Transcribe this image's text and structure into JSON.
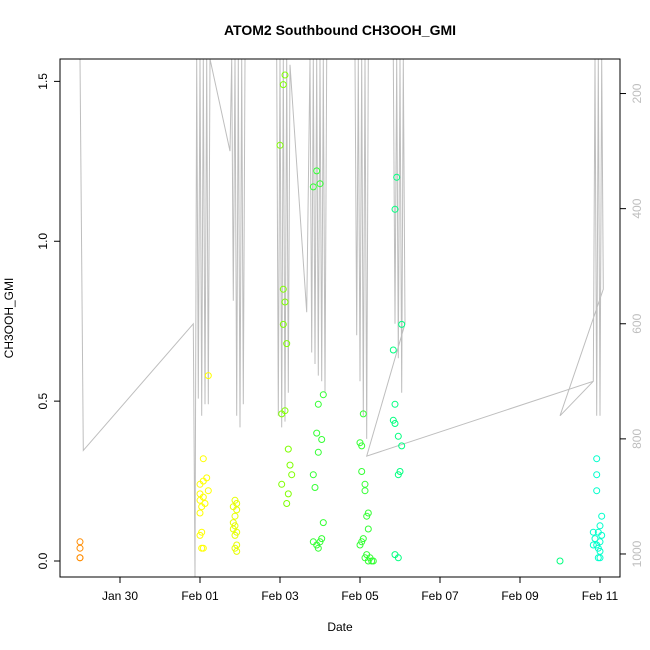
{
  "chart_data": {
    "type": "scatter",
    "title": "ATOM2 Southbound CH3OOH_GMI",
    "xlabel": "Date",
    "ylabel": "CH3OOH_GMI",
    "xlim": [
      "2017-01-28T12:00",
      "2017-02-11T12:00"
    ],
    "ylim": [
      -0.05,
      1.57
    ],
    "x_ticks": [
      {
        "value": "2017-01-30",
        "label": "Jan 30"
      },
      {
        "value": "2017-02-01",
        "label": "Feb 01"
      },
      {
        "value": "2017-02-03",
        "label": "Feb 03"
      },
      {
        "value": "2017-02-05",
        "label": "Feb 05"
      },
      {
        "value": "2017-02-07",
        "label": "Feb 07"
      },
      {
        "value": "2017-02-09",
        "label": "Feb 09"
      },
      {
        "value": "2017-02-11",
        "label": "Feb 11"
      }
    ],
    "y_ticks": [
      0.0,
      0.5,
      1.0,
      1.5
    ],
    "y_tick_labels": [
      "0.0",
      "0.5",
      "1.0",
      "1.5"
    ],
    "y2_label": "",
    "y2lim": [
      1040,
      140
    ],
    "y2_ticks": [
      200,
      400,
      600,
      800,
      1000
    ],
    "y2_tick_labels": [
      "200",
      "400",
      "600",
      "800",
      "1000"
    ],
    "grid": false,
    "colors": {
      "pressure_line": "#bebebe",
      "c1": "#ff8c00",
      "c2": "#ffff00",
      "c3": "#e6ff00",
      "c4": "#7fff00",
      "c5": "#33ff33",
      "c6": "#00ff7f",
      "c7": "#00ffcc"
    },
    "series": [
      {
        "color": "c1",
        "points": [
          [
            "2017-01-29T00:00",
            0.06
          ],
          [
            "2017-01-29T00:00",
            0.04
          ],
          [
            "2017-01-29T00:00",
            0.01
          ],
          [
            "2017-01-29T00:00",
            0.01
          ]
        ]
      },
      {
        "color": "c2",
        "points": [
          [
            "2017-02-01T02:00",
            0.32
          ],
          [
            "2017-02-01T05:00",
            0.58
          ],
          [
            "2017-02-01T04:00",
            0.26
          ],
          [
            "2017-02-01T02:00",
            0.25
          ],
          [
            "2017-02-01T00:00",
            0.24
          ],
          [
            "2017-02-01T05:00",
            0.22
          ],
          [
            "2017-02-01T00:00",
            0.21
          ],
          [
            "2017-02-01T02:00",
            0.2
          ],
          [
            "2017-02-01T00:00",
            0.19
          ],
          [
            "2017-02-01T03:00",
            0.18
          ],
          [
            "2017-02-01T01:00",
            0.17
          ],
          [
            "2017-02-01T00:00",
            0.15
          ],
          [
            "2017-02-01T01:00",
            0.09
          ],
          [
            "2017-02-01T00:00",
            0.08
          ],
          [
            "2017-02-01T02:00",
            0.04
          ],
          [
            "2017-02-01T01:00",
            0.04
          ]
        ]
      },
      {
        "color": "c3",
        "points": [
          [
            "2017-02-01T21:00",
            0.19
          ],
          [
            "2017-02-01T22:00",
            0.18
          ],
          [
            "2017-02-01T20:00",
            0.17
          ],
          [
            "2017-02-01T22:00",
            0.16
          ],
          [
            "2017-02-01T21:00",
            0.14
          ],
          [
            "2017-02-01T20:00",
            0.12
          ],
          [
            "2017-02-01T21:00",
            0.11
          ],
          [
            "2017-02-01T20:00",
            0.1
          ],
          [
            "2017-02-01T22:00",
            0.09
          ],
          [
            "2017-02-01T21:00",
            0.08
          ],
          [
            "2017-02-01T22:00",
            0.05
          ],
          [
            "2017-02-01T21:00",
            0.04
          ],
          [
            "2017-02-01T22:00",
            0.03
          ]
        ]
      },
      {
        "color": "c4",
        "points": [
          [
            "2017-02-03T03:00",
            1.52
          ],
          [
            "2017-02-03T02:00",
            1.49
          ],
          [
            "2017-02-03T00:00",
            1.3
          ],
          [
            "2017-02-03T02:00",
            0.85
          ],
          [
            "2017-02-03T03:00",
            0.81
          ],
          [
            "2017-02-03T02:00",
            0.74
          ],
          [
            "2017-02-03T04:00",
            0.68
          ],
          [
            "2017-02-03T03:00",
            0.47
          ],
          [
            "2017-02-03T01:00",
            0.46
          ],
          [
            "2017-02-03T05:00",
            0.35
          ],
          [
            "2017-02-03T06:00",
            0.3
          ],
          [
            "2017-02-03T07:00",
            0.27
          ],
          [
            "2017-02-03T01:00",
            0.24
          ],
          [
            "2017-02-03T05:00",
            0.21
          ],
          [
            "2017-02-03T04:00",
            0.18
          ]
        ]
      },
      {
        "color": "c5",
        "points": [
          [
            "2017-02-03T22:00",
            1.22
          ],
          [
            "2017-02-04T00:00",
            1.18
          ],
          [
            "2017-02-03T20:00",
            1.17
          ],
          [
            "2017-02-04T02:00",
            0.52
          ],
          [
            "2017-02-03T23:00",
            0.49
          ],
          [
            "2017-02-03T22:00",
            0.4
          ],
          [
            "2017-02-04T01:00",
            0.38
          ],
          [
            "2017-02-03T23:00",
            0.34
          ],
          [
            "2017-02-03T20:00",
            0.27
          ],
          [
            "2017-02-03T21:00",
            0.23
          ],
          [
            "2017-02-04T02:00",
            0.12
          ],
          [
            "2017-02-04T01:00",
            0.07
          ],
          [
            "2017-02-03T20:00",
            0.06
          ],
          [
            "2017-02-04T00:00",
            0.06
          ],
          [
            "2017-02-03T22:00",
            0.05
          ],
          [
            "2017-02-03T23:00",
            0.04
          ]
        ]
      },
      {
        "color": "c5",
        "points": [
          [
            "2017-02-05T02:00",
            0.46
          ],
          [
            "2017-02-05T00:00",
            0.37
          ],
          [
            "2017-02-05T01:00",
            0.36
          ],
          [
            "2017-02-05T01:00",
            0.28
          ],
          [
            "2017-02-05T03:00",
            0.24
          ],
          [
            "2017-02-05T03:00",
            0.22
          ],
          [
            "2017-02-05T05:00",
            0.15
          ],
          [
            "2017-02-05T04:00",
            0.14
          ],
          [
            "2017-02-05T05:00",
            0.1
          ],
          [
            "2017-02-05T02:00",
            0.07
          ],
          [
            "2017-02-05T01:00",
            0.06
          ],
          [
            "2017-02-05T00:00",
            0.05
          ],
          [
            "2017-02-05T04:00",
            0.02
          ],
          [
            "2017-02-05T06:00",
            0.01
          ],
          [
            "2017-02-05T03:00",
            0.01
          ],
          [
            "2017-02-05T05:00",
            0.0
          ],
          [
            "2017-02-05T07:00",
            0.0
          ],
          [
            "2017-02-05T08:00",
            0.0
          ]
        ]
      },
      {
        "color": "c6",
        "points": [
          [
            "2017-02-05T22:00",
            1.2
          ],
          [
            "2017-02-05T21:00",
            1.1
          ],
          [
            "2017-02-06T01:00",
            0.74
          ],
          [
            "2017-02-05T20:00",
            0.66
          ],
          [
            "2017-02-05T21:00",
            0.49
          ],
          [
            "2017-02-05T20:00",
            0.44
          ],
          [
            "2017-02-05T21:00",
            0.43
          ],
          [
            "2017-02-05T23:00",
            0.39
          ],
          [
            "2017-02-06T01:00",
            0.36
          ],
          [
            "2017-02-06T00:00",
            0.28
          ],
          [
            "2017-02-05T23:00",
            0.27
          ],
          [
            "2017-02-05T21:00",
            0.02
          ],
          [
            "2017-02-05T23:00",
            0.01
          ]
        ]
      },
      {
        "color": "c6",
        "points": [
          [
            "2017-02-10T00:00",
            0.0
          ]
        ]
      },
      {
        "color": "c7",
        "points": [
          [
            "2017-02-10T22:00",
            0.32
          ],
          [
            "2017-02-10T22:00",
            0.27
          ],
          [
            "2017-02-10T22:00",
            0.22
          ],
          [
            "2017-02-11T01:00",
            0.14
          ],
          [
            "2017-02-11T00:00",
            0.11
          ],
          [
            "2017-02-10T20:00",
            0.09
          ],
          [
            "2017-02-10T23:00",
            0.09
          ],
          [
            "2017-02-11T01:00",
            0.08
          ],
          [
            "2017-02-10T21:00",
            0.07
          ],
          [
            "2017-02-11T00:00",
            0.06
          ],
          [
            "2017-02-10T20:00",
            0.05
          ],
          [
            "2017-02-10T22:00",
            0.05
          ],
          [
            "2017-02-10T23:00",
            0.04
          ],
          [
            "2017-02-11T00:00",
            0.03
          ],
          [
            "2017-02-10T23:00",
            0.01
          ],
          [
            "2017-02-11T00:00",
            0.01
          ]
        ]
      }
    ],
    "pressure_line": [
      [
        "2017-01-28T12:00",
        140
      ],
      [
        "2017-01-29T00:00",
        140
      ],
      [
        "2017-01-29T02:00",
        820
      ],
      [
        "2017-01-31T20:00",
        600
      ],
      [
        "2017-01-31T21:00",
        1040
      ],
      [
        "2017-01-31T22:00",
        140
      ],
      [
        "2017-01-31T23:00",
        730
      ],
      [
        "2017-02-01T00:00",
        140
      ],
      [
        "2017-02-01T01:00",
        760
      ],
      [
        "2017-02-01T02:00",
        140
      ],
      [
        "2017-02-01T03:00",
        740
      ],
      [
        "2017-02-01T04:00",
        140
      ],
      [
        "2017-02-01T05:00",
        740
      ],
      [
        "2017-02-01T06:00",
        140
      ],
      [
        "2017-02-01T18:00",
        300
      ],
      [
        "2017-02-01T19:00",
        140
      ],
      [
        "2017-02-01T20:00",
        560
      ],
      [
        "2017-02-01T21:00",
        140
      ],
      [
        "2017-02-01T22:00",
        760
      ],
      [
        "2017-02-01T23:00",
        140
      ],
      [
        "2017-02-02T00:00",
        780
      ],
      [
        "2017-02-02T01:00",
        140
      ],
      [
        "2017-02-02T02:00",
        740
      ],
      [
        "2017-02-02T03:00",
        140
      ],
      [
        "2017-02-02T22:00",
        140
      ],
      [
        "2017-02-02T23:00",
        760
      ],
      [
        "2017-02-03T00:00",
        140
      ],
      [
        "2017-02-03T01:00",
        780
      ],
      [
        "2017-02-03T02:00",
        140
      ],
      [
        "2017-02-03T03:00",
        770
      ],
      [
        "2017-02-03T04:00",
        140
      ],
      [
        "2017-02-03T05:00",
        720
      ],
      [
        "2017-02-03T06:00",
        150
      ],
      [
        "2017-02-03T16:00",
        580
      ],
      [
        "2017-02-03T18:00",
        140
      ],
      [
        "2017-02-03T19:00",
        650
      ],
      [
        "2017-02-03T20:00",
        140
      ],
      [
        "2017-02-03T21:00",
        670
      ],
      [
        "2017-02-03T22:00",
        140
      ],
      [
        "2017-02-03T23:00",
        690
      ],
      [
        "2017-02-04T00:00",
        140
      ],
      [
        "2017-02-04T01:00",
        700
      ],
      [
        "2017-02-04T02:00",
        140
      ],
      [
        "2017-02-04T03:00",
        720
      ],
      [
        "2017-02-04T04:00",
        140
      ],
      [
        "2017-02-04T21:00",
        140
      ],
      [
        "2017-02-04T22:00",
        620
      ],
      [
        "2017-02-04T23:00",
        140
      ],
      [
        "2017-02-05T00:00",
        700
      ],
      [
        "2017-02-05T01:00",
        140
      ],
      [
        "2017-02-05T02:00",
        760
      ],
      [
        "2017-02-05T03:00",
        140
      ],
      [
        "2017-02-05T04:00",
        800
      ],
      [
        "2017-02-05T05:00",
        140
      ],
      [
        "2017-02-05T20:00",
        140
      ],
      [
        "2017-02-05T21:00",
        600
      ],
      [
        "2017-02-05T22:00",
        140
      ],
      [
        "2017-02-05T23:00",
        660
      ],
      [
        "2017-02-06T00:00",
        140
      ],
      [
        "2017-02-06T01:00",
        720
      ],
      [
        "2017-02-06T02:00",
        140
      ],
      [
        "2017-02-06T03:00",
        600
      ],
      [
        "2017-02-05T04:00",
        830
      ],
      [
        "2017-02-10T20:00",
        700
      ],
      [
        "2017-02-10T21:00",
        140
      ],
      [
        "2017-02-10T22:00",
        760
      ],
      [
        "2017-02-10T23:00",
        140
      ],
      [
        "2017-02-11T00:00",
        760
      ],
      [
        "2017-02-11T01:00",
        140
      ],
      [
        "2017-02-11T02:00",
        540
      ],
      [
        "2017-02-10T00:00",
        760
      ],
      [
        "2017-02-10T20:00",
        700
      ]
    ]
  }
}
